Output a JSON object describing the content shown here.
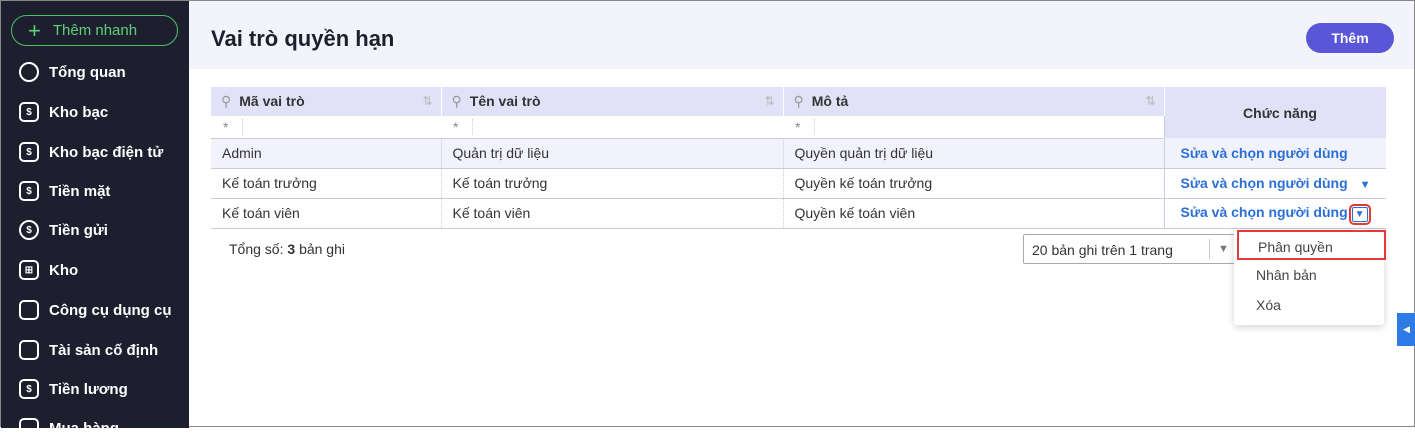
{
  "sidebar": {
    "quick_add": "Thêm nhanh",
    "items": [
      {
        "label": "Tổng quan",
        "icon": "pie-chart-icon"
      },
      {
        "label": "Kho bạc",
        "icon": "treasury-icon"
      },
      {
        "label": "Kho bạc điện tử",
        "icon": "e-treasury-icon"
      },
      {
        "label": "Tiền mặt",
        "icon": "cash-icon"
      },
      {
        "label": "Tiền gửi",
        "icon": "deposit-icon"
      },
      {
        "label": "Kho",
        "icon": "warehouse-icon"
      },
      {
        "label": "Công cụ dụng cụ",
        "icon": "tools-icon"
      },
      {
        "label": "Tài sản cố định",
        "icon": "truck-icon"
      },
      {
        "label": "Tiền lương",
        "icon": "salary-icon"
      },
      {
        "label": "Mua hàng",
        "icon": "cart-icon"
      }
    ]
  },
  "header": {
    "title": "Vai trò quyền hạn",
    "add_label": "Thêm"
  },
  "table": {
    "columns": [
      "Mã vai trò",
      "Tên vai trò",
      "Mô tả",
      "Chức năng"
    ],
    "filter": "*",
    "rows": [
      {
        "code": "Admin",
        "name": "Quản trị dữ liệu",
        "desc": "Quyền quản trị dữ liệu",
        "action": "Sửa và chọn người dùng"
      },
      {
        "code": "Kế toán trưởng",
        "name": "Kế toán trưởng",
        "desc": "Quyền kế toán trưởng",
        "action": "Sửa và chọn người dùng"
      },
      {
        "code": "Kế toán viên",
        "name": "Kế toán viên",
        "desc": "Quyền kế toán viên",
        "action": "Sửa và chọn người dùng"
      }
    ]
  },
  "footer": {
    "total_prefix": "Tổng số:",
    "total_count": "3",
    "total_suffix": "bản ghi",
    "page_size": "20 bản ghi trên 1 trang"
  },
  "menu": [
    "Phân quyền",
    "Nhân bản",
    "Xóa"
  ],
  "colors": {
    "accent": "#5a56d8",
    "link": "#2a6fd6",
    "sidebar": "#1d1e2e",
    "highlight": "#e53935"
  }
}
